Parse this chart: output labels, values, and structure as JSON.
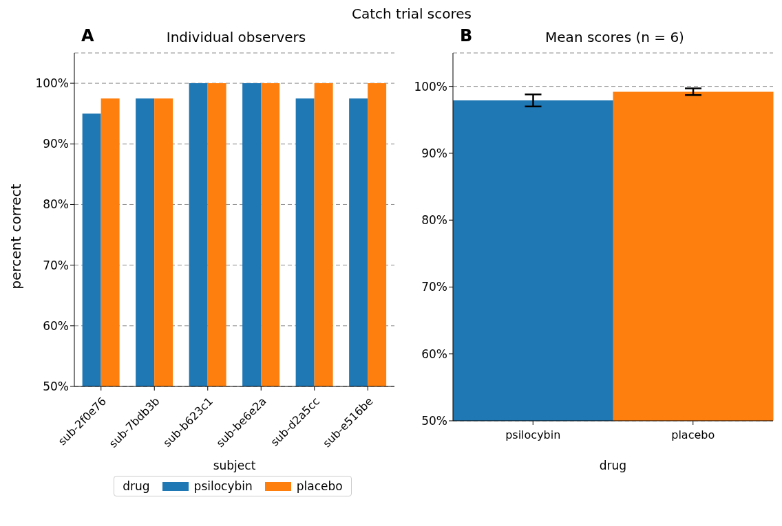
{
  "chart_data": [
    {
      "type": "bar",
      "title": "Individual observers",
      "xlabel": "subject",
      "ylabel": "percent correct",
      "legend_title": "drug",
      "legend": "bottom",
      "grid": "y",
      "annotations": [
        "Catch trial scores",
        "A"
      ],
      "categories": [
        "sub-2f0e76",
        "sub-7bdb3b",
        "sub-b623c1",
        "sub-be6e2a",
        "sub-d2a5cc",
        "sub-e516be"
      ],
      "series": [
        {
          "name": "psilocybin",
          "color": "#1f77b4",
          "values": [
            95,
            97.5,
            100,
            100,
            97.5,
            97.5
          ]
        },
        {
          "name": "placebo",
          "color": "#ff7f0e",
          "values": [
            97.5,
            97.5,
            100,
            100,
            100,
            100
          ]
        }
      ],
      "ylim": [
        50,
        105
      ],
      "yticks": [
        {
          "value": 50,
          "label": "50%"
        },
        {
          "value": 60,
          "label": "60%"
        },
        {
          "value": 70,
          "label": "70%"
        },
        {
          "value": 80,
          "label": "80%"
        },
        {
          "value": 90,
          "label": "90%"
        },
        {
          "value": 100,
          "label": "100%"
        }
      ]
    },
    {
      "type": "bar",
      "title": "Mean scores (n = 6)",
      "xlabel": "drug",
      "grid": "y",
      "annotations": [
        "B"
      ],
      "categories": [
        "psilocybin",
        "placebo"
      ],
      "values": [
        97.9,
        99.2
      ],
      "colors": [
        "#1f77b4",
        "#ff7f0e"
      ],
      "errors": [
        0.9,
        0.5
      ],
      "ylim": [
        50,
        105
      ],
      "yticks": [
        {
          "value": 50,
          "label": "50%"
        },
        {
          "value": 60,
          "label": "60%"
        },
        {
          "value": 70,
          "label": "70%"
        },
        {
          "value": 80,
          "label": "80%"
        },
        {
          "value": 90,
          "label": "90%"
        },
        {
          "value": 100,
          "label": "100%"
        }
      ]
    }
  ]
}
